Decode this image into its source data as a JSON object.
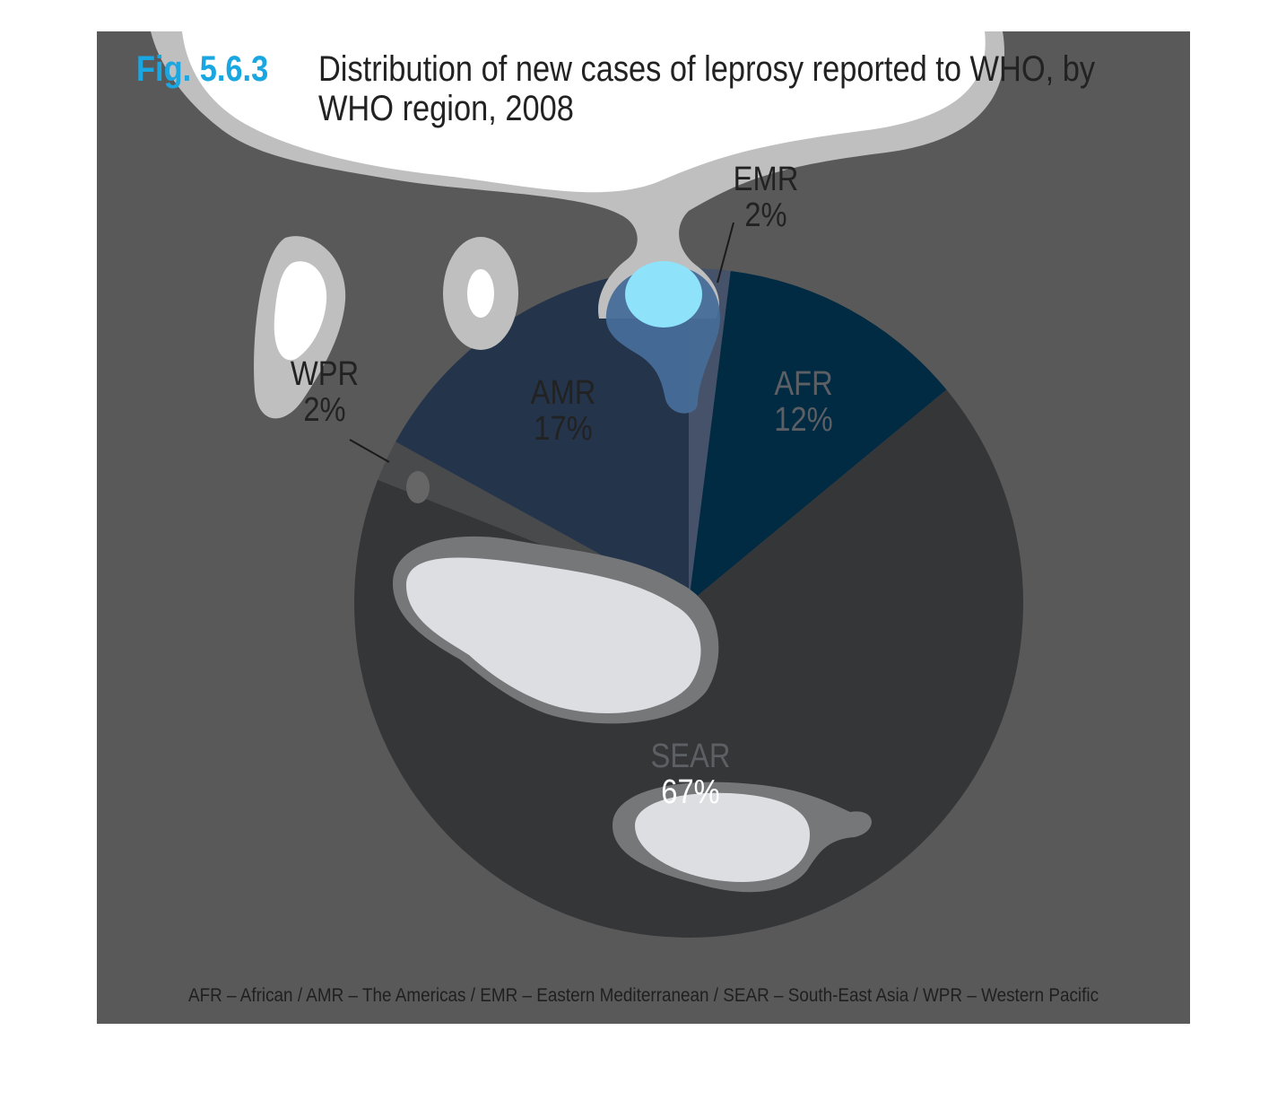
{
  "figure": {
    "number": "Fig. 5.6.3",
    "title": "Distribution of new cases of leprosy reported to WHO, by WHO region, 2008",
    "footnote": "AFR – African / AMR – The Americas / EMR – Eastern Mediterranean / SEAR – South-East Asia / WPR – Western Pacific"
  },
  "chart_data": {
    "type": "pie",
    "title": "Distribution of new cases of leprosy reported to WHO, by WHO region, 2008",
    "slices": [
      {
        "label": "EMR",
        "value": 2,
        "value_label": "2%",
        "color": "#46526a"
      },
      {
        "label": "AFR",
        "value": 12,
        "value_label": "12%",
        "color": "#012a43"
      },
      {
        "label": "SEAR",
        "value": 67,
        "value_label": "67%",
        "color": "#353638"
      },
      {
        "label": "WPR",
        "value": 2,
        "value_label": "2%",
        "color": "#484a4c"
      },
      {
        "label": "AMR",
        "value": 17,
        "value_label": "17%",
        "color": "#24344b"
      }
    ],
    "start": "12 o'clock, clockwise",
    "legend": "none"
  },
  "colors": {
    "background": "#595959",
    "figure_number": "#1aa6e0",
    "dark_text": "#222222",
    "muted_text": "#5c5f63",
    "cloud": "#ffffff",
    "cloud_halo": "#bfbfbf",
    "blob": "#dcdee2",
    "blob_halo": "#767779",
    "droplet": "#8ee3fb",
    "drip": "#466d98"
  }
}
